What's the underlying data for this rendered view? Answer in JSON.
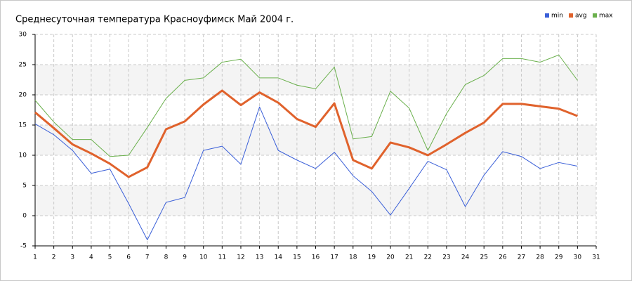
{
  "chart_data": {
    "type": "line",
    "title": "Среднесуточная температура Красноуфимск  Май 2004 г.",
    "x": [
      1,
      2,
      3,
      4,
      5,
      6,
      7,
      8,
      9,
      10,
      11,
      12,
      13,
      14,
      15,
      16,
      17,
      18,
      19,
      20,
      21,
      22,
      23,
      24,
      25,
      26,
      27,
      28,
      29,
      30
    ],
    "series": [
      {
        "name": "min",
        "color": "#3a5fd8",
        "line_width": 1,
        "values": [
          15.2,
          13.4,
          10.8,
          7.0,
          7.7,
          2.0,
          -4.0,
          2.2,
          3.0,
          10.8,
          11.5,
          8.5,
          18.0,
          10.8,
          9.2,
          7.8,
          10.5,
          6.6,
          4.0,
          0.1,
          4.5,
          9.0,
          7.6,
          1.5,
          6.7,
          10.6,
          9.8,
          7.8,
          8.8,
          8.2
        ]
      },
      {
        "name": "avg",
        "color": "#e0622c",
        "line_width": 3,
        "values": [
          17.1,
          14.5,
          11.8,
          10.3,
          8.6,
          6.4,
          8.0,
          14.3,
          15.6,
          18.4,
          20.7,
          18.3,
          20.4,
          18.7,
          16.0,
          14.7,
          18.6,
          9.2,
          7.8,
          12.1,
          11.3,
          10.0,
          11.8,
          13.7,
          15.4,
          18.5,
          18.5,
          18.1,
          17.7,
          16.5
        ]
      },
      {
        "name": "max",
        "color": "#6ab04c",
        "line_width": 1,
        "values": [
          19.1,
          15.5,
          12.6,
          12.6,
          9.8,
          10.0,
          14.6,
          19.4,
          22.4,
          22.8,
          25.4,
          25.9,
          22.8,
          22.8,
          21.6,
          21.0,
          24.6,
          12.7,
          13.1,
          20.6,
          17.8,
          10.8,
          16.9,
          21.7,
          23.2,
          26.0,
          26.0,
          25.4,
          26.6,
          22.4
        ]
      }
    ],
    "xlim": [
      1,
      31
    ],
    "xticks": [
      1,
      2,
      3,
      4,
      5,
      6,
      7,
      8,
      9,
      10,
      11,
      12,
      13,
      14,
      15,
      16,
      17,
      18,
      19,
      20,
      21,
      22,
      23,
      24,
      25,
      26,
      27,
      28,
      29,
      30,
      31
    ],
    "ylim": [
      -5,
      30
    ],
    "yticks": [
      -5,
      0,
      5,
      10,
      15,
      20,
      25,
      30
    ],
    "grid": true,
    "legend": "top-right"
  }
}
